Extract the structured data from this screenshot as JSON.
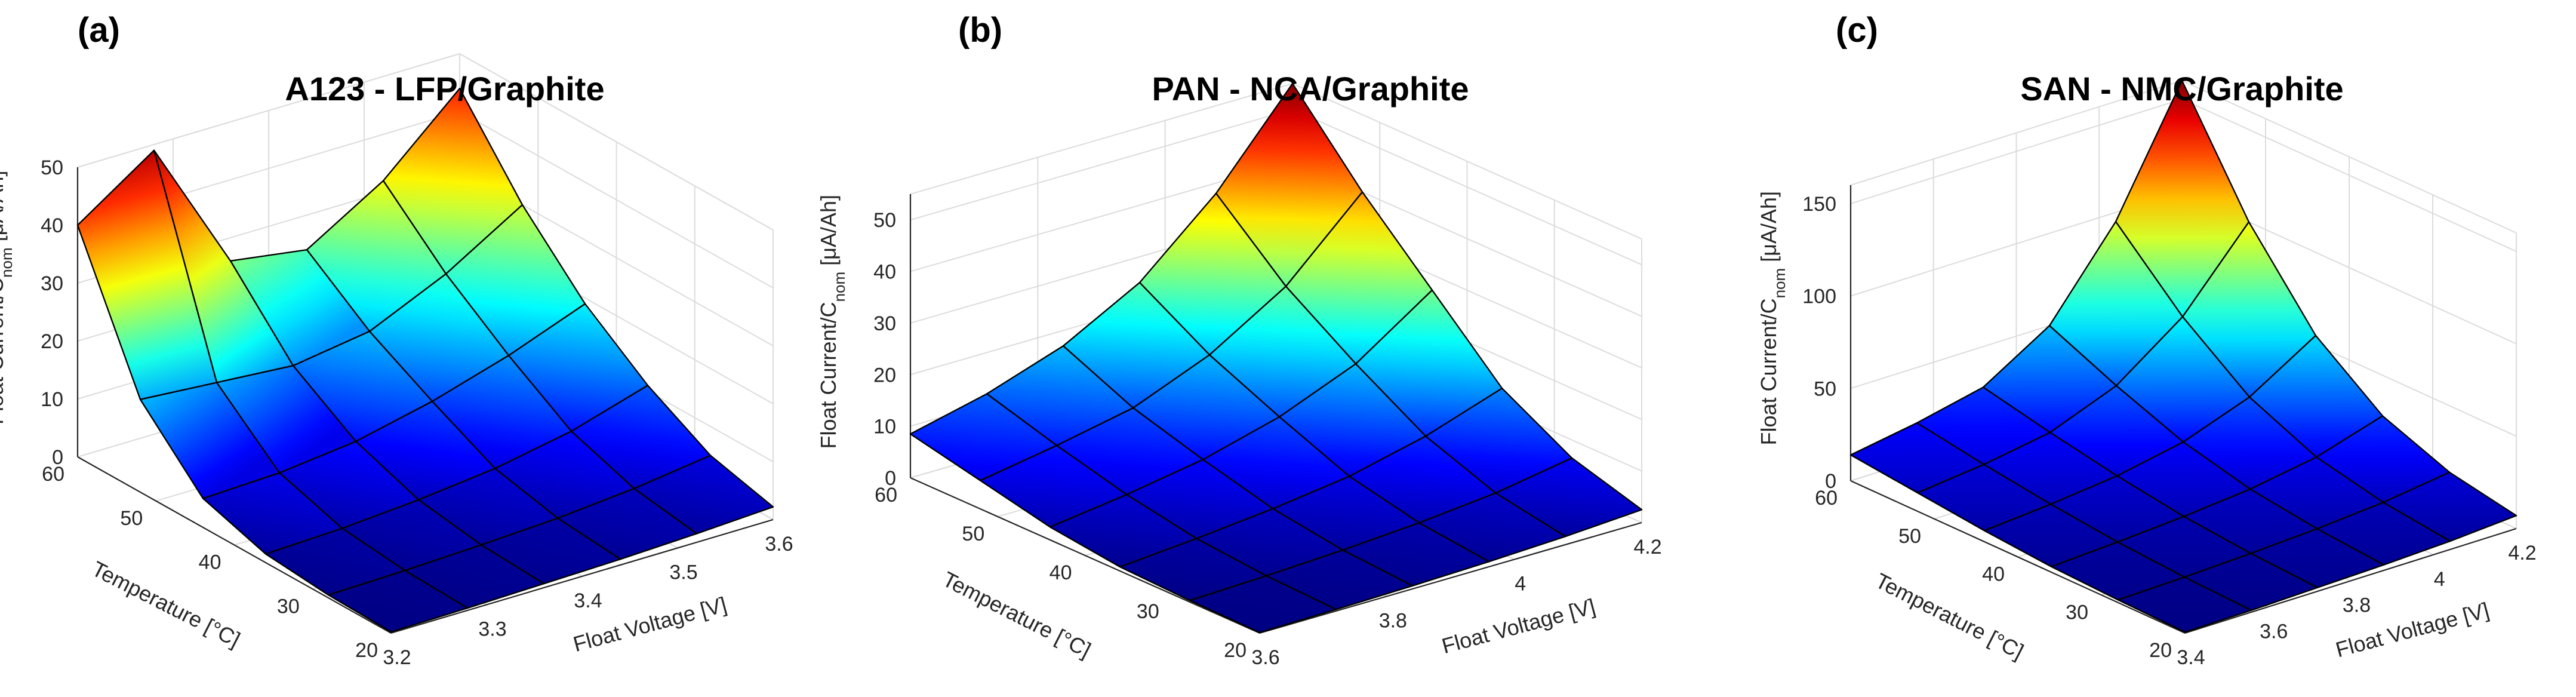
{
  "chart_data": [
    {
      "type": "surface3d",
      "panel_label": "(a)",
      "title": "A123 - LFP/Graphite",
      "xlabel": "Float Voltage [V]",
      "ylabel": "Temperature [°C]",
      "zlabel_main": "Float Current/C",
      "zlabel_sub": "nom",
      "zlabel_units": " [μA/Ah]",
      "x": [
        3.2,
        3.28,
        3.36,
        3.44,
        3.52,
        3.6
      ],
      "y": [
        20,
        28,
        36,
        44,
        52,
        60
      ],
      "x_ticks": [
        "3.2",
        "3.3",
        "3.4",
        "3.5",
        "3.6"
      ],
      "y_ticks": [
        "20",
        "30",
        "40",
        "50",
        "60"
      ],
      "z_ticks": [
        "0",
        "10",
        "20",
        "30",
        "40",
        "50"
      ],
      "xlim": [
        3.2,
        3.6
      ],
      "ylim": [
        20,
        60
      ],
      "zlim": [
        0,
        50
      ],
      "color_range": [
        0,
        52
      ],
      "z": [
        [
          0.2,
          0.4,
          0.7,
          1.0,
          1.5,
          2.2
        ],
        [
          0.5,
          0.8,
          1.3,
          2.0,
          3.2,
          5.0
        ],
        [
          1.5,
          2.0,
          3.0,
          4.5,
          7.0,
          11.0
        ],
        [
          5.0,
          5.5,
          7.0,
          10.0,
          14.0,
          19.0
        ],
        [
          16.0,
          15.0,
          14.0,
          16.0,
          22.0,
          30.0
        ],
        [
          40.0,
          49.0,
          26.0,
          24.0,
          32.0,
          44.0
        ]
      ]
    },
    {
      "type": "surface3d",
      "panel_label": "(b)",
      "title": "PAN - NCA/Graphite",
      "xlabel": "Float Voltage [V]",
      "ylabel": "Temperature [°C]",
      "zlabel_main": "Float Current/C",
      "zlabel_sub": "nom",
      "zlabel_units": " [μA/Ah]",
      "x": [
        3.6,
        3.72,
        3.84,
        3.96,
        4.08,
        4.2
      ],
      "y": [
        20,
        28,
        36,
        44,
        52,
        60
      ],
      "x_ticks": [
        "3.6",
        "3.8",
        "4",
        "4.2"
      ],
      "y_ticks": [
        "20",
        "30",
        "40",
        "50",
        "60"
      ],
      "z_ticks": [
        "0",
        "10",
        "20",
        "30",
        "40",
        "50"
      ],
      "xlim": [
        3.6,
        4.2
      ],
      "ylim": [
        20,
        60
      ],
      "zlim": [
        0,
        55
      ],
      "color_range": [
        0,
        55
      ],
      "z": [
        [
          0.1,
          0.3,
          0.6,
          1.0,
          1.6,
          2.5
        ],
        [
          0.3,
          0.8,
          1.5,
          2.5,
          4.0,
          6.5
        ],
        [
          0.8,
          2.0,
          3.5,
          5.5,
          9.0,
          14.0
        ],
        [
          2.5,
          4.5,
          7.0,
          11.0,
          17.0,
          27.0
        ],
        [
          5.5,
          8.0,
          11.0,
          17.0,
          26.0,
          40.0
        ],
        [
          8.5,
          12.0,
          17.0,
          25.0,
          38.0,
          55.0
        ]
      ]
    },
    {
      "type": "surface3d",
      "panel_label": "(c)",
      "title": "SAN - NMC/Graphite",
      "xlabel": "Float Voltage [V]",
      "ylabel": "Temperature [°C]",
      "zlabel_main": "Float Current/C",
      "zlabel_sub": "nom",
      "zlabel_units": " [μA/Ah]",
      "x": [
        3.4,
        3.56,
        3.72,
        3.88,
        4.04,
        4.2
      ],
      "y": [
        20,
        28,
        36,
        44,
        52,
        60
      ],
      "x_ticks": [
        "3.4",
        "3.6",
        "3.8",
        "4",
        "4.2"
      ],
      "y_ticks": [
        "20",
        "30",
        "40",
        "50",
        "60"
      ],
      "z_ticks": [
        "0",
        "50",
        "100",
        "150"
      ],
      "xlim": [
        3.4,
        4.2
      ],
      "ylim": [
        20,
        60
      ],
      "zlim": [
        0,
        160
      ],
      "color_range": [
        0,
        160
      ],
      "z": [
        [
          0.5,
          1.0,
          2.0,
          3.0,
          4.5,
          7.0
        ],
        [
          1.5,
          2.5,
          4.0,
          6.0,
          9.0,
          14.0
        ],
        [
          3.0,
          5.0,
          7.5,
          11.0,
          17.0,
          28.0
        ],
        [
          6.0,
          9.0,
          13.0,
          20.0,
          33.0,
          55.0
        ],
        [
          10.0,
          14.0,
          20.0,
          34.0,
          60.0,
          100.0
        ],
        [
          14.0,
          20.0,
          28.0,
          50.0,
          95.0,
          160.0
        ]
      ]
    }
  ]
}
